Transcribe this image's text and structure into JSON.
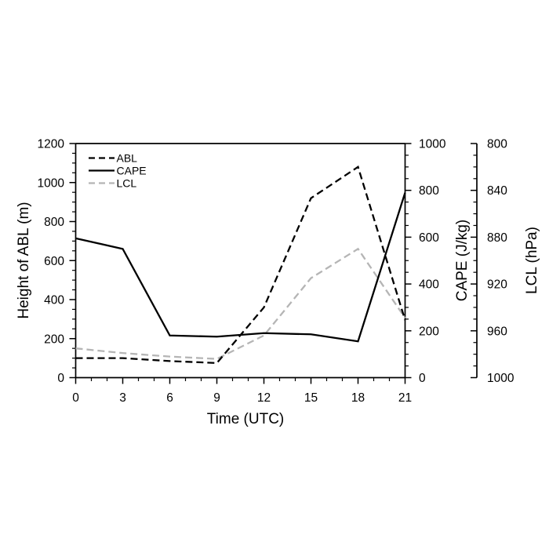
{
  "chart_data": {
    "type": "line",
    "title": "",
    "xlabel": "Time (UTC)",
    "x": [
      0,
      3,
      6,
      9,
      12,
      15,
      18,
      21
    ],
    "xlim": [
      0,
      21
    ],
    "x_ticks": [
      0,
      3,
      6,
      9,
      12,
      15,
      18,
      21
    ],
    "x_minor_step": 1,
    "grid": false,
    "axes": {
      "left": {
        "label": "Height of ABL (m)",
        "lim": [
          0,
          1200
        ],
        "ticks": [
          0,
          200,
          400,
          600,
          800,
          1000,
          1200
        ],
        "minor_step": 50,
        "inverted": false
      },
      "cape": {
        "label": "CAPE (J/kg)",
        "lim": [
          0,
          1000
        ],
        "ticks": [
          0,
          200,
          400,
          600,
          800,
          1000
        ],
        "minor_step": 50,
        "inverted": false
      },
      "lcl": {
        "label": "LCL (hPa)",
        "lim": [
          800,
          1000
        ],
        "ticks": [
          800,
          840,
          880,
          920,
          960,
          1000
        ],
        "minor_step": 10,
        "inverted": true
      }
    },
    "series": [
      {
        "name": "ABL",
        "axis": "left",
        "line": "dashed",
        "color": "#000000",
        "label_color": "#000000",
        "values": [
          100,
          100,
          85,
          75,
          360,
          920,
          1080,
          295
        ]
      },
      {
        "name": "CAPE",
        "axis": "cape",
        "line": "solid",
        "color": "#000000",
        "label_color": "#000000",
        "values": [
          595,
          550,
          180,
          175,
          190,
          185,
          155,
          790
        ]
      },
      {
        "name": "LCL",
        "axis": "lcl",
        "line": "dashed",
        "color": "#b5b5b5",
        "label_color": "#a6a6a6",
        "values": [
          975,
          979,
          982,
          984,
          964,
          915,
          890,
          949
        ]
      }
    ],
    "legend": {
      "position": "top-left",
      "items": [
        "ABL",
        "CAPE",
        "LCL"
      ]
    }
  }
}
